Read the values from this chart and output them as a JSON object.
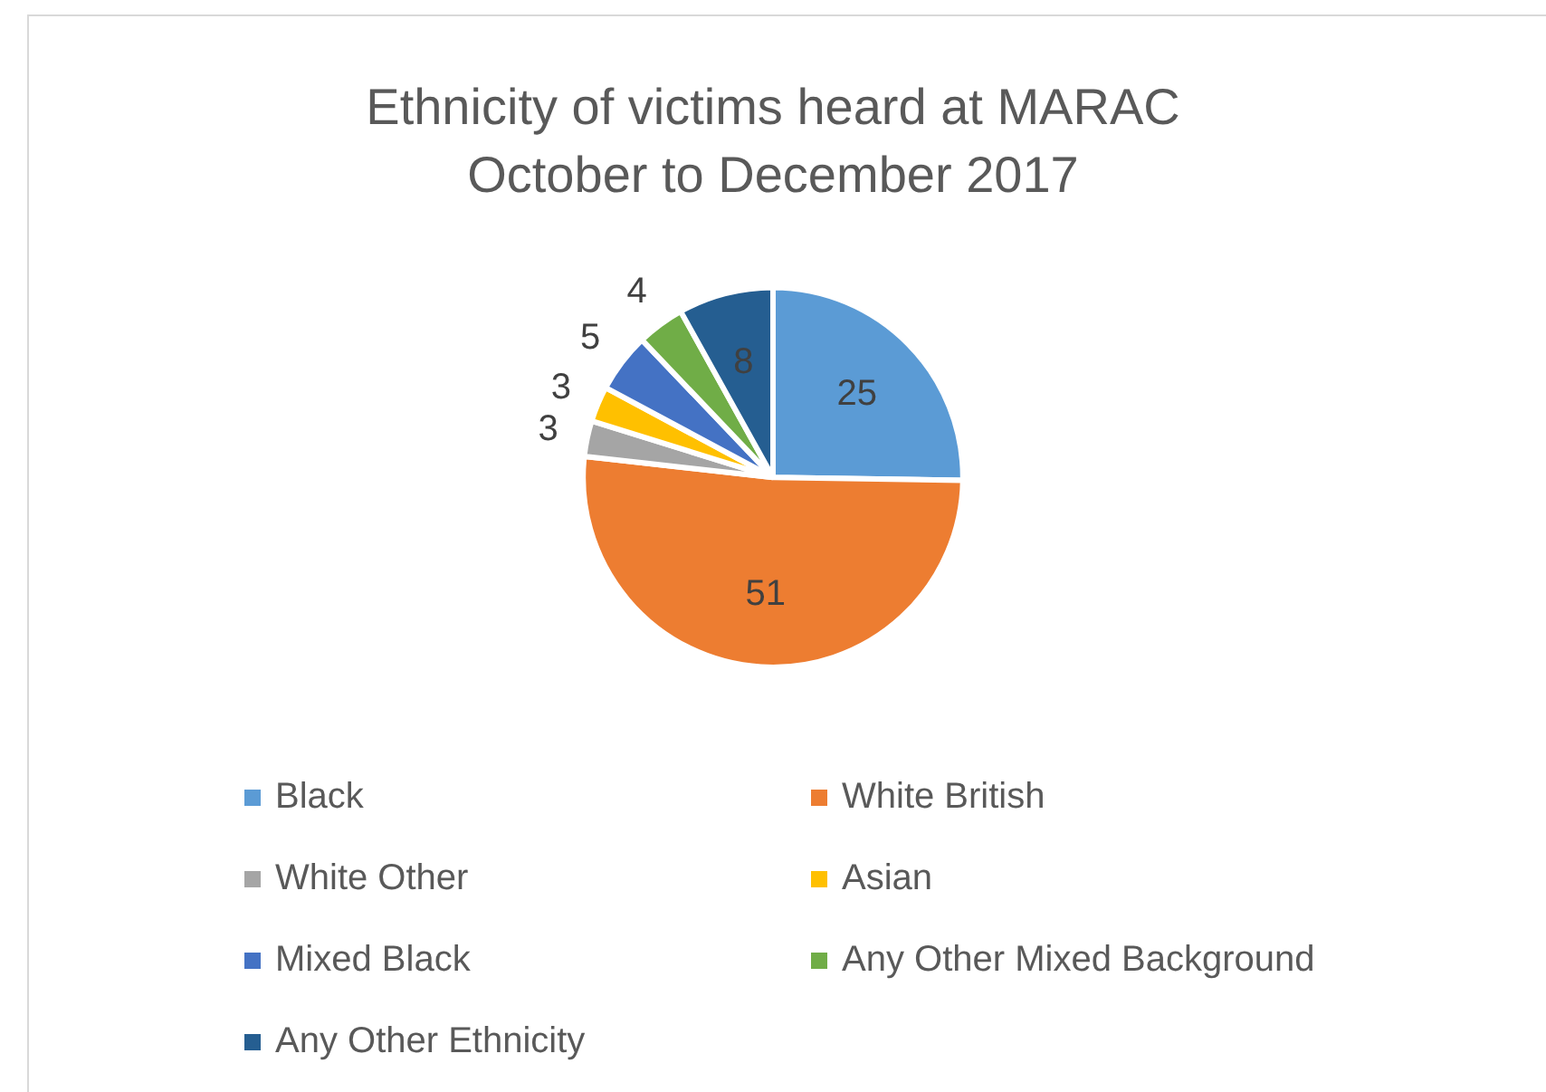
{
  "chart_data": {
    "type": "pie",
    "title": "Ethnicity of victims heard at MARAC",
    "subtitle": "October to December 2017",
    "categories": [
      "Black",
      "White British",
      "White Other",
      "Asian",
      "Mixed Black",
      "Any Other Mixed Background",
      "Any Other Ethnicity"
    ],
    "values": [
      25,
      51,
      3,
      3,
      5,
      4,
      8
    ],
    "colors": [
      "#5b9bd5",
      "#ed7d31",
      "#a5a5a5",
      "#ffc000",
      "#4472c4",
      "#70ad47",
      "#255e91"
    ],
    "data_labels": true,
    "legend": "bottom"
  }
}
